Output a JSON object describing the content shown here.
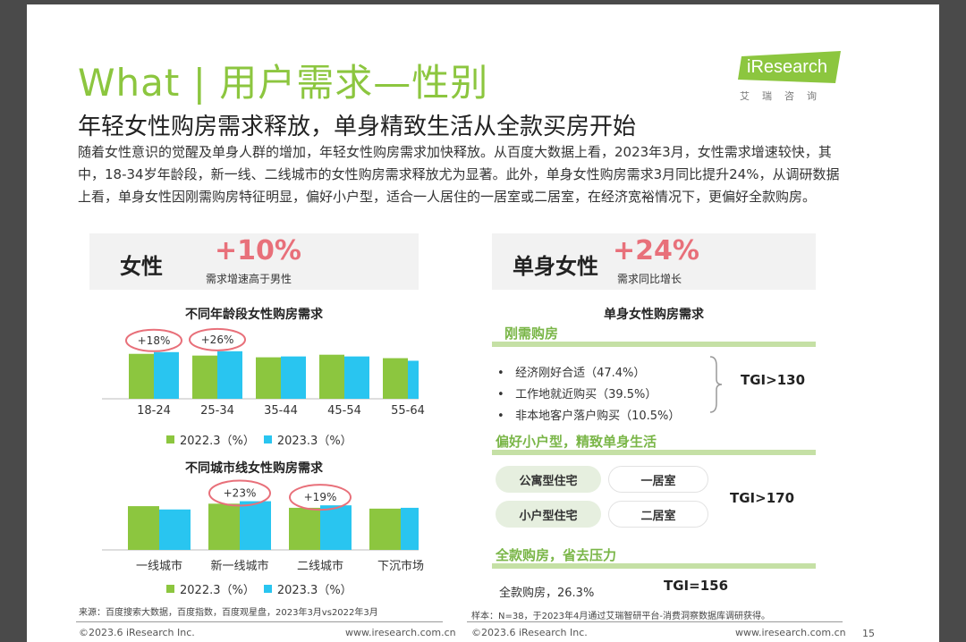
{
  "header": {
    "title": "What | 用户需求—性别",
    "subtitle": "年轻女性购房需求释放，单身精致生活从全款买房开始",
    "intro": "随着女性意识的觉醒及单身人群的增加，年轻女性购房需求加快释放。从百度大数据上看，2023年3月，女性需求增速较快，其中，18-34岁年龄段，新一线、二线城市的女性购房需求释放尤为显著。此外，单身女性购房需求3月同比提升24%，从调研数据上看，单身女性因刚需购房特征明显，偏好小户型，适合一人居住的一居室或二居室，在经济宽裕情况下，更偏好全款购房。",
    "logo_text": "iResearch",
    "logo_cn": "艾瑞咨询"
  },
  "left": {
    "label": "女性",
    "pct": "+10%",
    "note": "需求增速高于男性",
    "source": "来源：百度搜索大数据，百度指数，百度观星盘，2023年3月vs2022年3月",
    "footer_left": "©2023.6 iResearch Inc.",
    "footer_right": "www.iresearch.com.cn"
  },
  "right": {
    "label": "单身女性",
    "pct": "+24%",
    "note": "需求同比增长",
    "chart_title": "单身女性购房需求",
    "sec1_title": "刚需购房",
    "sec1_items": [
      "经济刚好合适（47.4%）",
      "工作地就近购买（39.5%）",
      "非本地客户落户购买（10.5%）"
    ],
    "sec1_tgi": "TGI>130",
    "sec2_title": "偏好小户型，精致单身生活",
    "sec2_pills": [
      "公寓型住宅",
      "一居室",
      "小户型住宅",
      "二居室"
    ],
    "sec2_tgi": "TGI>170",
    "sec3_title": "全款购房，省去压力",
    "sec3_item": "全款购房，26.3%",
    "sec3_tgi": "TGI=156",
    "sample": "样本：N=38，于2023年4月通过艾瑞智研平台-消费洞察数据库调研获得。",
    "footer_left": "©2023.6 iResearch Inc.",
    "footer_right": "www.iresearch.com.cn",
    "page_num": "15"
  },
  "colors": {
    "green": "#8cc63f",
    "blue": "#29c5f0",
    "pink": "#e8707a"
  },
  "chart_data": [
    {
      "type": "bar",
      "title": "不同年龄段女性购房需求",
      "categories": [
        "18-24",
        "25-34",
        "35-44",
        "45-54",
        "55-64"
      ],
      "series": [
        {
          "name": "2022.3（%）",
          "values": [
            52,
            50,
            48,
            51,
            47
          ]
        },
        {
          "name": "2023.3（%）",
          "values": [
            54,
            55,
            49,
            49,
            44
          ]
        }
      ],
      "annotations": [
        {
          "category": "18-24",
          "text": "+18%"
        },
        {
          "category": "25-34",
          "text": "+26%"
        }
      ],
      "legend": "bottom"
    },
    {
      "type": "bar",
      "title": "不同城市线女性购房需求",
      "categories": [
        "一线城市",
        "新一线城市",
        "二线城市",
        "下沉市场"
      ],
      "series": [
        {
          "name": "2022.3（%）",
          "values": [
            53,
            56,
            51,
            50
          ]
        },
        {
          "name": "2023.3（%）",
          "values": [
            49,
            59,
            54,
            51
          ]
        }
      ],
      "annotations": [
        {
          "category": "新一线城市",
          "text": "+23%"
        },
        {
          "category": "二线城市",
          "text": "+19%"
        }
      ],
      "legend": "bottom"
    }
  ]
}
